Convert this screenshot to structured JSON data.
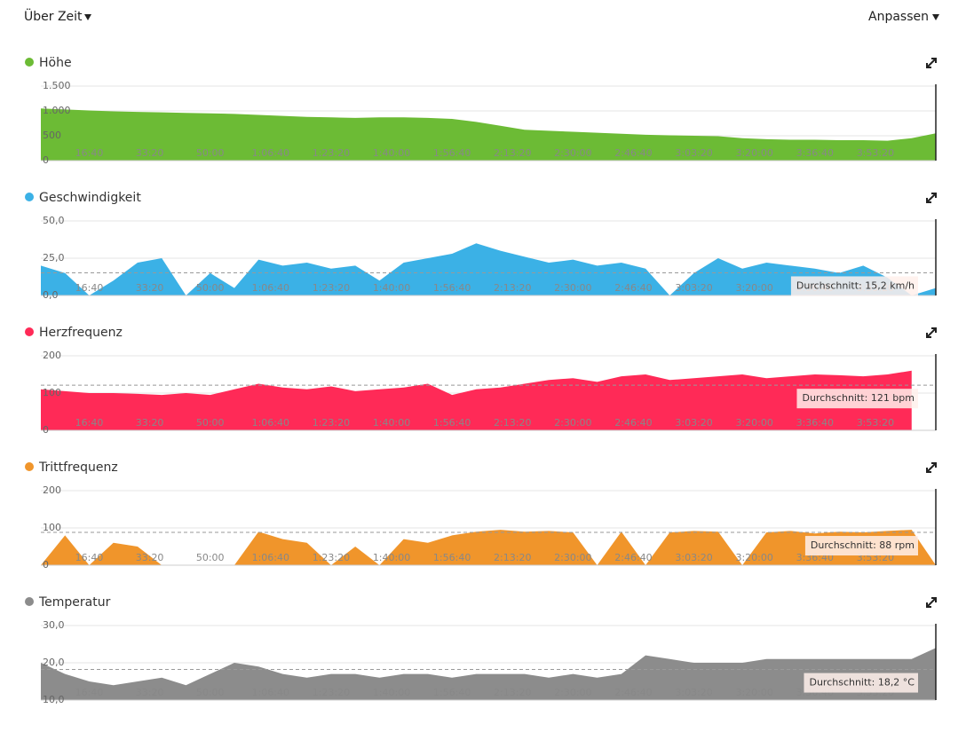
{
  "header": {
    "left": "Über Zeit",
    "right": "Anpassen"
  },
  "chart_data": [
    {
      "type": "area",
      "title": "Höhe",
      "color": "#6cbb35",
      "x": [
        200,
        600,
        1000,
        1400,
        1800,
        2200,
        2600,
        3000,
        3400,
        3800,
        4200,
        4600,
        5000,
        5400,
        5800,
        6200,
        6600,
        7000,
        7400,
        7800,
        8200,
        8600,
        9000,
        9400,
        9800,
        10200,
        10600,
        11000,
        11400,
        11800,
        12200,
        12600,
        13000,
        13400,
        13800,
        14200,
        14600,
        15000
      ],
      "values": [
        1050,
        1030,
        1010,
        990,
        980,
        970,
        960,
        950,
        940,
        920,
        900,
        880,
        870,
        860,
        870,
        870,
        860,
        840,
        780,
        700,
        620,
        600,
        580,
        560,
        540,
        520,
        510,
        500,
        490,
        450,
        430,
        420,
        420,
        410,
        410,
        400,
        450,
        548
      ],
      "xlim": [
        200,
        15000
      ],
      "ylim": [
        0,
        1500
      ],
      "xticks": [
        {
          "value": 1000,
          "label": "16:40"
        },
        {
          "value": 2000,
          "label": "33:20"
        },
        {
          "value": 3000,
          "label": "50:00"
        },
        {
          "value": 4000,
          "label": "1:06:40"
        },
        {
          "value": 5000,
          "label": "1:23:20"
        },
        {
          "value": 6000,
          "label": "1:40:00"
        },
        {
          "value": 7000,
          "label": "1:56:40"
        },
        {
          "value": 8000,
          "label": "2:13:20"
        },
        {
          "value": 9000,
          "label": "2:30:00"
        },
        {
          "value": 10000,
          "label": "2:46:40"
        },
        {
          "value": 11000,
          "label": "3:03:20"
        },
        {
          "value": 12000,
          "label": "3:20:00"
        },
        {
          "value": 13000,
          "label": "3:36:40"
        },
        {
          "value": 14000,
          "label": "3:53:20"
        }
      ],
      "yticks": [
        0,
        500,
        {
          "value": 1000,
          "label": "1.000"
        },
        {
          "value": 1500,
          "label": "1.500"
        }
      ]
    },
    {
      "type": "area",
      "title": "Geschwindigkeit",
      "color": "#3bb1e6",
      "x": [
        200,
        600,
        1000,
        1400,
        1800,
        2200,
        2600,
        3000,
        3400,
        3800,
        4200,
        4600,
        5000,
        5400,
        5800,
        6200,
        6600,
        7000,
        7400,
        7800,
        8200,
        8600,
        9000,
        9400,
        9800,
        10200,
        10600,
        11000,
        11400,
        11800,
        12200,
        12600,
        13000,
        13400,
        13800,
        14200,
        14600,
        15000
      ],
      "values": [
        20,
        15,
        0,
        10,
        22,
        25,
        0,
        15,
        5,
        24,
        20,
        22,
        18,
        20,
        10,
        22,
        25,
        28,
        35,
        30,
        26,
        22,
        24,
        20,
        22,
        18,
        0,
        15,
        25,
        18,
        22,
        20,
        18,
        15,
        20,
        12,
        0,
        5
      ],
      "xlim": [
        200,
        15000
      ],
      "ylim": [
        0,
        50
      ],
      "xticks": [
        {
          "value": 1000,
          "label": "16:40"
        },
        {
          "value": 2000,
          "label": "33:20"
        },
        {
          "value": 3000,
          "label": "50:00"
        },
        {
          "value": 4000,
          "label": "1:06:40"
        },
        {
          "value": 5000,
          "label": "1:23:20"
        },
        {
          "value": 6000,
          "label": "1:40:00"
        },
        {
          "value": 7000,
          "label": "1:56:40"
        },
        {
          "value": 8000,
          "label": "2:13:20"
        },
        {
          "value": 9000,
          "label": "2:30:00"
        },
        {
          "value": 10000,
          "label": "2:46:40"
        },
        {
          "value": 11000,
          "label": "3:03:20"
        },
        {
          "value": 12000,
          "label": "3:20:00"
        },
        {
          "value": 13000,
          "label": "3:36:40"
        },
        {
          "value": 14000,
          "label": "3:53:20"
        }
      ],
      "yticks": [
        {
          "value": 0,
          "label": "0,0"
        },
        {
          "value": 25,
          "label": "25,0"
        },
        {
          "value": 50,
          "label": "50,0"
        }
      ],
      "avg": 15.2,
      "avg_label": "Durchschnitt: 15,2 km/h"
    },
    {
      "type": "area",
      "title": "Herzfrequenz",
      "color": "#ff2a57",
      "x": [
        200,
        600,
        1000,
        1400,
        1800,
        2200,
        2600,
        3000,
        3400,
        3800,
        4200,
        4600,
        5000,
        5400,
        5800,
        6200,
        6600,
        7000,
        7400,
        7800,
        8200,
        8600,
        9000,
        9400,
        9800,
        10200,
        10600,
        11000,
        11400,
        11800,
        12200,
        12600,
        13000,
        13400,
        13800,
        14200,
        14600,
        15000
      ],
      "values": [
        110,
        105,
        100,
        100,
        98,
        95,
        100,
        95,
        110,
        125,
        115,
        110,
        118,
        105,
        110,
        115,
        125,
        95,
        110,
        115,
        125,
        135,
        140,
        130,
        145,
        150,
        135,
        140,
        145,
        150,
        140,
        145,
        150,
        148,
        145,
        150,
        160,
        null
      ],
      "xlim": [
        200,
        15000
      ],
      "ylim": [
        0,
        200
      ],
      "xticks": [
        {
          "value": 1000,
          "label": "16:40"
        },
        {
          "value": 2000,
          "label": "33:20"
        },
        {
          "value": 3000,
          "label": "50:00"
        },
        {
          "value": 4000,
          "label": "1:06:40"
        },
        {
          "value": 5000,
          "label": "1:23:20"
        },
        {
          "value": 6000,
          "label": "1:40:00"
        },
        {
          "value": 7000,
          "label": "1:56:40"
        },
        {
          "value": 8000,
          "label": "2:13:20"
        },
        {
          "value": 9000,
          "label": "2:30:00"
        },
        {
          "value": 10000,
          "label": "2:46:40"
        },
        {
          "value": 11000,
          "label": "3:03:20"
        },
        {
          "value": 12000,
          "label": "3:20:00"
        },
        {
          "value": 13000,
          "label": "3:36:40"
        },
        {
          "value": 14000,
          "label": "3:53:20"
        }
      ],
      "yticks": [
        0,
        100,
        200
      ],
      "avg": 121,
      "avg_label": "Durchschnitt: 121 bpm"
    },
    {
      "type": "area",
      "title": "Trittfrequenz",
      "color": "#f0952b",
      "x": [
        200,
        600,
        1000,
        1400,
        1800,
        2200,
        2600,
        3000,
        3400,
        3800,
        4200,
        4600,
        5000,
        5400,
        5800,
        6200,
        6600,
        7000,
        7400,
        7800,
        8200,
        8600,
        9000,
        9400,
        9800,
        10200,
        10600,
        11000,
        11400,
        11800,
        12200,
        12600,
        13000,
        13400,
        13800,
        14200,
        14600,
        15000
      ],
      "values": [
        0,
        80,
        0,
        60,
        50,
        0,
        0,
        0,
        0,
        90,
        70,
        60,
        0,
        50,
        0,
        70,
        60,
        80,
        90,
        95,
        90,
        92,
        88,
        0,
        90,
        0,
        88,
        92,
        90,
        0,
        88,
        92,
        85,
        90,
        88,
        92,
        95,
        0
      ],
      "xlim": [
        200,
        15000
      ],
      "ylim": [
        0,
        200
      ],
      "xticks": [
        {
          "value": 1000,
          "label": "16:40"
        },
        {
          "value": 2000,
          "label": "33:20"
        },
        {
          "value": 3000,
          "label": "50:00"
        },
        {
          "value": 4000,
          "label": "1:06:40"
        },
        {
          "value": 5000,
          "label": "1:23:20"
        },
        {
          "value": 6000,
          "label": "1:40:00"
        },
        {
          "value": 7000,
          "label": "1:56:40"
        },
        {
          "value": 8000,
          "label": "2:13:20"
        },
        {
          "value": 9000,
          "label": "2:30:00"
        },
        {
          "value": 10000,
          "label": "2:46:40"
        },
        {
          "value": 11000,
          "label": "3:03:20"
        },
        {
          "value": 12000,
          "label": "3:20:00"
        },
        {
          "value": 13000,
          "label": "3:36:40"
        },
        {
          "value": 14000,
          "label": "3:53:20"
        }
      ],
      "yticks": [
        0,
        100,
        200
      ],
      "avg": 88,
      "avg_label": "Durchschnitt: 88 rpm"
    },
    {
      "type": "area",
      "title": "Temperatur",
      "color": "#8c8c8c",
      "x": [
        200,
        600,
        1000,
        1400,
        1800,
        2200,
        2600,
        3000,
        3400,
        3800,
        4200,
        4600,
        5000,
        5400,
        5800,
        6200,
        6600,
        7000,
        7400,
        7800,
        8200,
        8600,
        9000,
        9400,
        9800,
        10200,
        10600,
        11000,
        11400,
        11800,
        12200,
        12600,
        13000,
        13400,
        13800,
        14200,
        14600,
        15000
      ],
      "values": [
        20,
        17,
        15,
        14,
        15,
        16,
        14,
        17,
        20,
        19,
        17,
        16,
        17,
        17,
        16,
        17,
        17,
        16,
        17,
        17,
        17,
        16,
        17,
        16,
        17,
        22,
        21,
        20,
        20,
        20,
        21,
        21,
        21,
        21,
        21,
        21,
        21,
        24
      ],
      "xlim": [
        200,
        15000
      ],
      "ylim": [
        10,
        30
      ],
      "xticks": [
        {
          "value": 1000,
          "label": "16:40"
        },
        {
          "value": 2000,
          "label": "33:20"
        },
        {
          "value": 3000,
          "label": "50:00"
        },
        {
          "value": 4000,
          "label": "1:06:40"
        },
        {
          "value": 5000,
          "label": "1:23:20"
        },
        {
          "value": 6000,
          "label": "1:40:00"
        },
        {
          "value": 7000,
          "label": "1:56:40"
        },
        {
          "value": 8000,
          "label": "2:13:20"
        },
        {
          "value": 9000,
          "label": "2:30:00"
        },
        {
          "value": 10000,
          "label": "2:46:40"
        },
        {
          "value": 11000,
          "label": "3:03:20"
        },
        {
          "value": 12000,
          "label": "3:20:00"
        },
        {
          "value": 13000,
          "label": "3:36:40"
        },
        {
          "value": 14000,
          "label": "3:53:20"
        }
      ],
      "yticks": [
        {
          "value": 10,
          "label": "10,0"
        },
        {
          "value": 20,
          "label": "20,0"
        },
        {
          "value": 30,
          "label": "30,0"
        }
      ],
      "avg": 18.2,
      "avg_label": "Durchschnitt: 18,2 °C"
    }
  ]
}
